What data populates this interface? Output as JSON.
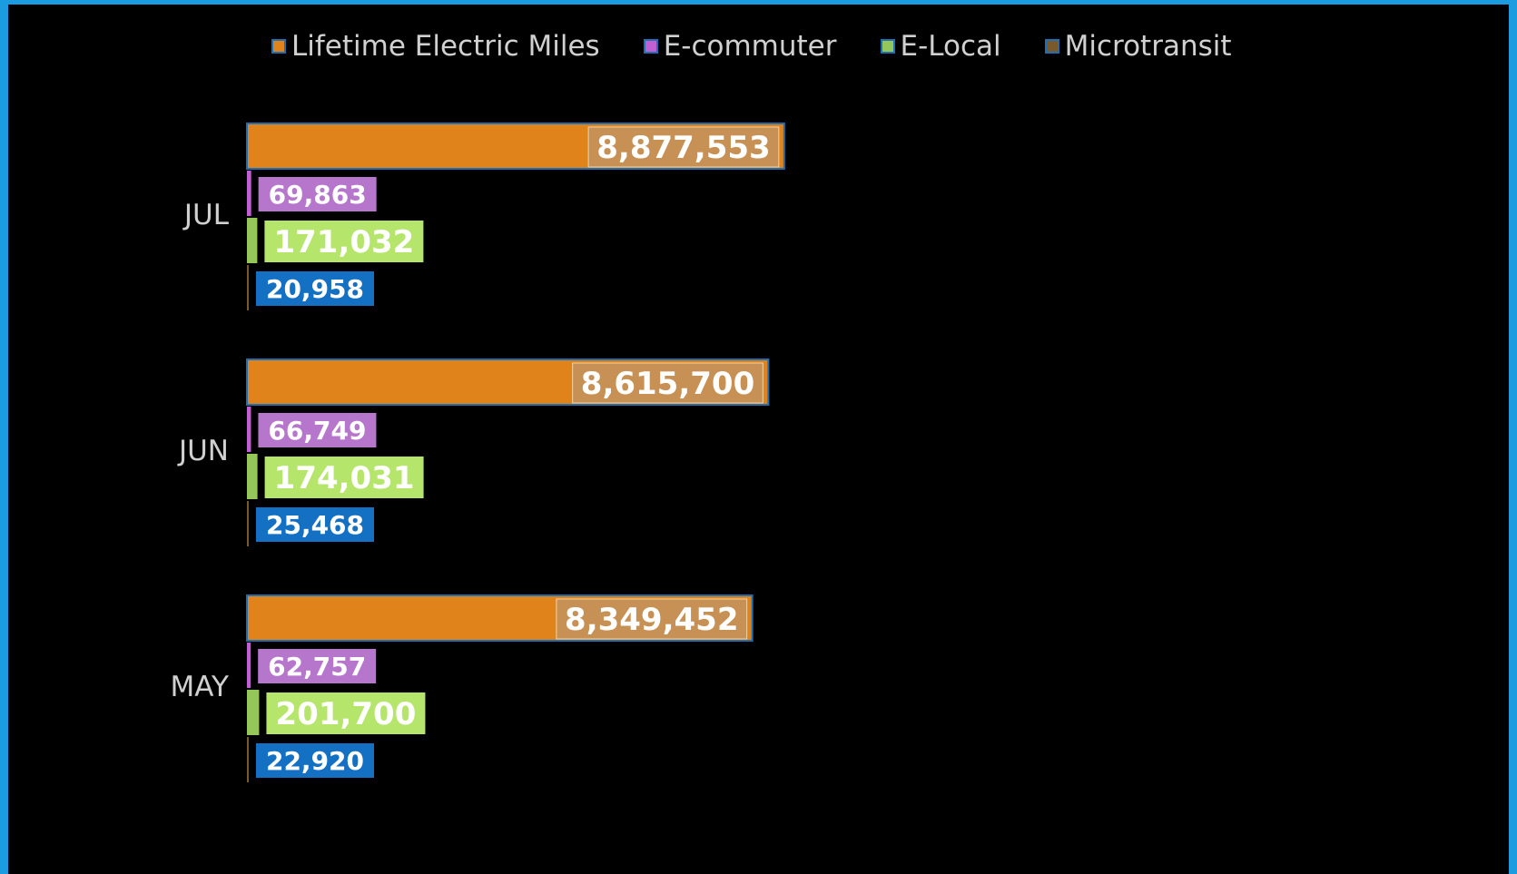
{
  "chart_data": {
    "type": "bar",
    "orientation": "horizontal",
    "categories": [
      "JUL",
      "JUN",
      "MAY"
    ],
    "series": [
      {
        "name": "Lifetime Electric Miles",
        "color": "#e0831a",
        "label_bg": "#c79155",
        "values": [
          8877553,
          8615700,
          8349452
        ]
      },
      {
        "name": "E-commuter",
        "color": "#c25fd4",
        "label_bg": "#b576cc",
        "values": [
          69863,
          66749,
          62757
        ]
      },
      {
        "name": "E-Local",
        "color": "#94c65a",
        "label_bg": "#b5e56b",
        "values": [
          171032,
          174031,
          201700
        ]
      },
      {
        "name": "Microtransit",
        "color": "#7a5a2a",
        "label_bg": "#1470c2",
        "values": [
          20958,
          25468,
          22920
        ]
      }
    ],
    "value_labels": {
      "JUL": [
        "8,877,553",
        "69,863",
        "171,032",
        "20,958"
      ],
      "JUN": [
        "8,615,700",
        "66,749",
        "174,031",
        "25,468"
      ],
      "MAY": [
        "8,349,452",
        "62,757",
        "201,700",
        "22,920"
      ]
    },
    "xlim": [
      0,
      15000000
    ],
    "grid": false,
    "legend_position": "top"
  }
}
